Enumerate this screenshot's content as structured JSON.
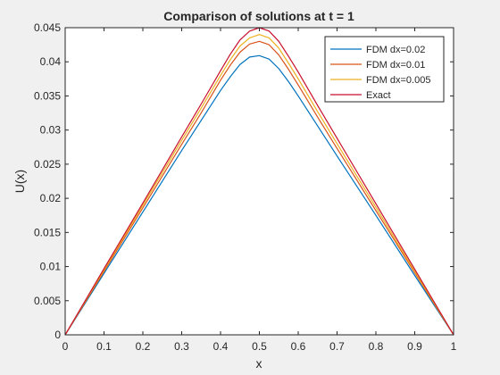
{
  "chart_data": {
    "type": "line",
    "title": "Comparison of solutions at t = 1",
    "xlabel": "x",
    "ylabel": "U(x)",
    "xlim": [
      0,
      1
    ],
    "ylim": [
      0,
      0.045
    ],
    "grid": false,
    "legend_position": "top-right",
    "xticks": [
      0,
      0.1,
      0.2,
      0.3,
      0.4,
      0.5,
      0.6,
      0.7,
      0.8,
      0.9,
      1
    ],
    "xtick_labels": [
      "0",
      "0.1",
      "0.2",
      "0.3",
      "0.4",
      "0.5",
      "0.6",
      "0.7",
      "0.8",
      "0.9",
      "1"
    ],
    "yticks": [
      0,
      0.005,
      0.01,
      0.015,
      0.02,
      0.025,
      0.03,
      0.035,
      0.04,
      0.045
    ],
    "ytick_labels": [
      "0",
      "0.005",
      "0.01",
      "0.015",
      "0.02",
      "0.025",
      "0.03",
      "0.035",
      "0.04",
      "0.045"
    ],
    "x": [
      0,
      0.1,
      0.2,
      0.3,
      0.35,
      0.4,
      0.425,
      0.45,
      0.475,
      0.5,
      0.525,
      0.55,
      0.575,
      0.6,
      0.65,
      0.7,
      0.8,
      0.9,
      1
    ],
    "series": [
      {
        "name": "FDM dx=0.02",
        "color": "#0072BD",
        "values": [
          0,
          0.009,
          0.018,
          0.027,
          0.0314,
          0.0358,
          0.0378,
          0.0396,
          0.0407,
          0.0409,
          0.0404,
          0.039,
          0.0371,
          0.035,
          0.0306,
          0.0262,
          0.0175,
          0.0087,
          0
        ]
      },
      {
        "name": "FDM dx=0.01",
        "color": "#D95319",
        "values": [
          0,
          0.0093,
          0.0186,
          0.0279,
          0.0325,
          0.0373,
          0.0395,
          0.0414,
          0.0426,
          0.043,
          0.0425,
          0.041,
          0.0389,
          0.0366,
          0.0319,
          0.0273,
          0.0182,
          0.0091,
          0
        ]
      },
      {
        "name": "FDM dx=0.005",
        "color": "#EDB120",
        "values": [
          0,
          0.0095,
          0.019,
          0.0285,
          0.0332,
          0.038,
          0.0403,
          0.0423,
          0.0435,
          0.044,
          0.0435,
          0.042,
          0.0398,
          0.0375,
          0.0327,
          0.028,
          0.0187,
          0.0093,
          0
        ]
      },
      {
        "name": "Exact",
        "color": "#C8102E",
        "values": [
          0,
          0.0097,
          0.0193,
          0.029,
          0.0338,
          0.0387,
          0.0411,
          0.0432,
          0.0445,
          0.045,
          0.0445,
          0.043,
          0.0408,
          0.0385,
          0.0336,
          0.0288,
          0.0192,
          0.0096,
          0
        ]
      }
    ]
  }
}
